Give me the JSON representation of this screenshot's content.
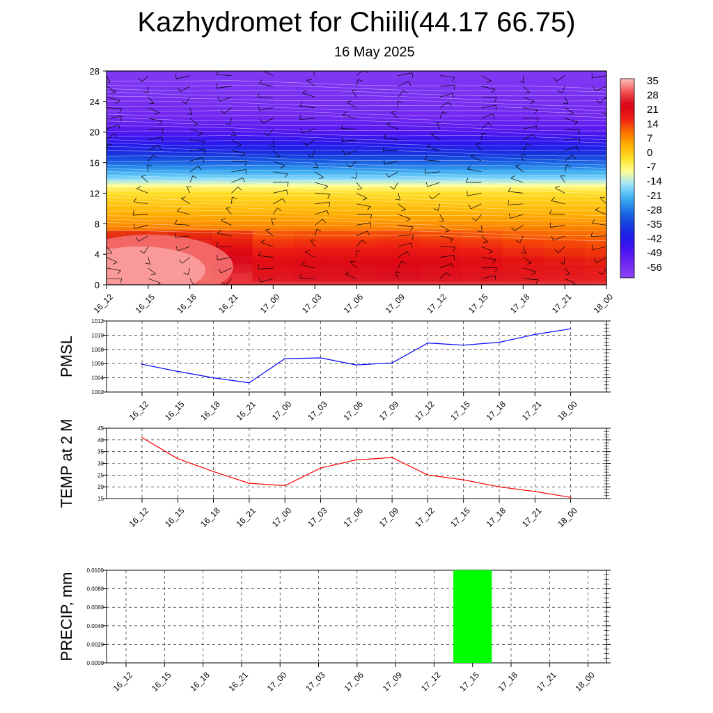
{
  "title": "Kazhydromet for Chiili(44.17 66.75)",
  "subtitle": "16 May 2025",
  "time_labels": [
    "16_12",
    "16_15",
    "16_18",
    "16_21",
    "17_00",
    "17_03",
    "17_06",
    "17_09",
    "17_12",
    "17_15",
    "17_18",
    "17_21",
    "18_00"
  ],
  "colors": {
    "pmsl_line": "#0000ff",
    "temp_line": "#ff0000",
    "precip_bar": "#00ff00",
    "grid": "#000000"
  },
  "chart_data": [
    {
      "type": "heatmap",
      "ylim": [
        0,
        28
      ],
      "yticks": [
        "0",
        "4",
        "8",
        "12",
        "16",
        "20",
        "24",
        "28"
      ],
      "categories": [
        "16_12",
        "16_15",
        "16_18",
        "16_21",
        "17_00",
        "17_03",
        "17_06",
        "17_09",
        "17_12",
        "17_15",
        "17_18",
        "17_21",
        "18_00"
      ],
      "colorbar_labels": [
        "35",
        "28",
        "21",
        "14",
        "7",
        "0",
        "-7",
        "-14",
        "-21",
        "-28",
        "-35",
        "-42",
        "-49",
        "-56"
      ],
      "colorbar_range": [
        -63,
        42
      ],
      "freezing_level": [
        13.6,
        13.5,
        13.4,
        13.4,
        13.3,
        13.2,
        13.1,
        13.0,
        12.9,
        12.8,
        12.7,
        12.6,
        12.5
      ],
      "surface_values": [
        38,
        38,
        37,
        33,
        26,
        27,
        27,
        28,
        27,
        26,
        24,
        23,
        22
      ],
      "wind_barbs": "present"
    },
    {
      "type": "line",
      "ylabel": "PMSL",
      "categories": [
        "16_12",
        "16_15",
        "16_18",
        "16_21",
        "17_00",
        "17_03",
        "17_06",
        "17_09",
        "17_12",
        "17_15",
        "17_18",
        "17_21",
        "18_00"
      ],
      "values": [
        1005.9,
        1004.9,
        1004.0,
        1003.3,
        1006.7,
        1006.8,
        1005.8,
        1006.1,
        1008.9,
        1008.6,
        1009.0,
        1010.1,
        1010.9
      ],
      "ylim": [
        1002,
        1012
      ],
      "yticks": [
        "1002",
        "1004",
        "1006",
        "1008",
        "1010",
        "1012"
      ],
      "grid": true
    },
    {
      "type": "line",
      "ylabel": "TEMP at 2 M",
      "categories": [
        "16_12",
        "16_15",
        "16_18",
        "16_21",
        "17_00",
        "17_03",
        "17_06",
        "17_09",
        "17_12",
        "17_15",
        "17_18",
        "17_21",
        "18_00"
      ],
      "values": [
        41,
        32,
        26.5,
        21.5,
        20.5,
        28,
        31.5,
        32.5,
        25,
        23,
        20,
        18,
        15.5
      ],
      "ylim": [
        15,
        45
      ],
      "yticks": [
        "15",
        "20",
        "25",
        "30",
        "35",
        "40",
        "45"
      ],
      "grid": true
    },
    {
      "type": "bar",
      "ylabel": "PRECIP, mm",
      "categories": [
        "16_12",
        "16_15",
        "16_18",
        "16_21",
        "17_00",
        "17_03",
        "17_06",
        "17_09",
        "17_12",
        "17_15",
        "17_18",
        "17_21",
        "18_00"
      ],
      "values": [
        0,
        0,
        0,
        0,
        0,
        0,
        0,
        0,
        0,
        0.01,
        0,
        0,
        0
      ],
      "ylim": [
        0,
        0.01
      ],
      "yticks": [
        "0.0000",
        "0.0020",
        "0.0040",
        "0.0060",
        "0.0080",
        "0.0100"
      ],
      "grid": true
    }
  ]
}
